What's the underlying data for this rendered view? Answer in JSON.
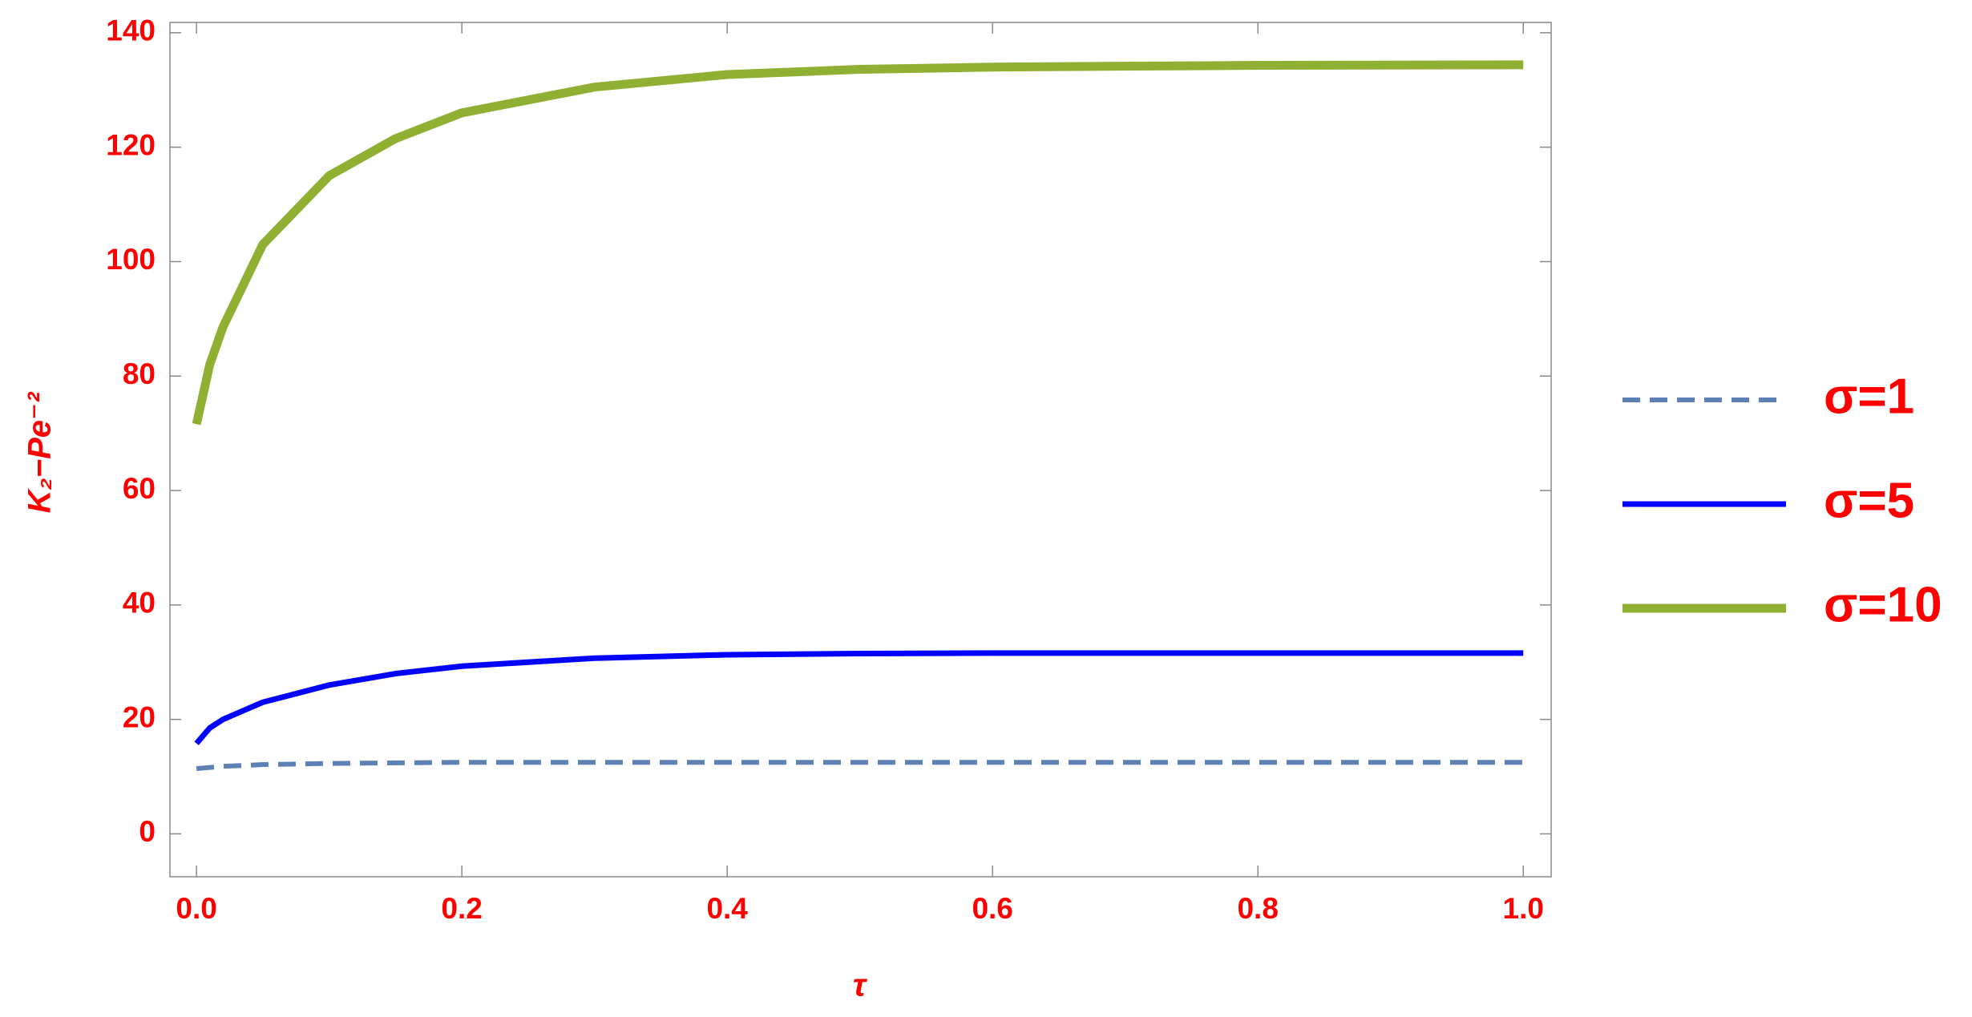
{
  "chart_data": {
    "type": "line",
    "x_label": "τ",
    "y_label": "K₂−Pe⁻²",
    "x": [
      0,
      0.01,
      0.02,
      0.05,
      0.1,
      0.15,
      0.2,
      0.3,
      0.4,
      0.5,
      0.6,
      0.8,
      1.0
    ],
    "series": [
      {
        "name": "σ=1",
        "color": "#5e81b5",
        "dashed": true,
        "values": [
          11.4,
          11.6,
          11.8,
          12.1,
          12.3,
          12.4,
          12.5,
          12.5,
          12.5,
          12.5,
          12.5,
          12.5,
          12.5
        ]
      },
      {
        "name": "σ=5",
        "color": "#0000ff",
        "dashed": false,
        "values": [
          15.8,
          18.5,
          20,
          23,
          26,
          28,
          29.3,
          30.7,
          31.3,
          31.5,
          31.6,
          31.6,
          31.6
        ]
      },
      {
        "name": "σ=10",
        "color": "#8fb032",
        "dashed": false,
        "values": [
          71.6,
          82,
          88.6,
          103,
          115,
          121.5,
          126,
          130.5,
          132.7,
          133.6,
          134,
          134.3,
          134.4
        ]
      }
    ],
    "xlim": [
      -0.02,
      1.021
    ],
    "ylim": [
      -7.5,
      141.8
    ],
    "xticks": [
      {
        "value": 0,
        "label": "0.0"
      },
      0.2,
      0.4,
      0.6,
      0.8,
      {
        "value": 1,
        "label": "1.0"
      }
    ],
    "yticks": [
      0,
      20,
      40,
      60,
      80,
      100,
      120,
      140
    ],
    "legend": "right"
  }
}
